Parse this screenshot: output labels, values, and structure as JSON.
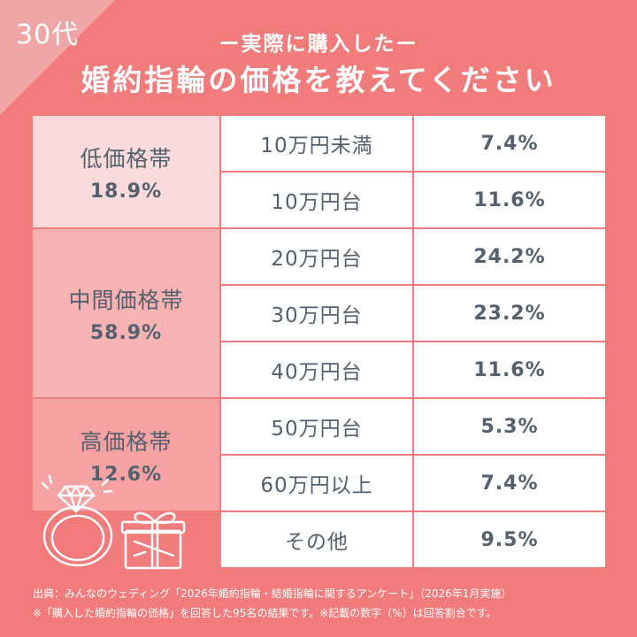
{
  "age_label": "30代",
  "subtitle": "ー実際に購入したー",
  "title": "婚約指輪の価格を教えてください",
  "colors": {
    "background": "#f27b7b",
    "corner": "#f0a6a6",
    "group_low": "#f9dbdb",
    "group_mid": "#f7b3b3",
    "group_high": "#f6a2a2",
    "text": "#55606f"
  },
  "chart_data": {
    "type": "table",
    "groups": [
      {
        "name": "低価格帯",
        "total": "18.9%",
        "rows": [
          {
            "range": "10万円未満",
            "value": "7.4%"
          },
          {
            "range": "10万円台",
            "value": "11.6%"
          }
        ]
      },
      {
        "name": "中間価格帯",
        "total": "58.9%",
        "rows": [
          {
            "range": "20万円台",
            "value": "24.2%"
          },
          {
            "range": "30万円台",
            "value": "23.2%"
          },
          {
            "range": "40万円台",
            "value": "11.6%"
          }
        ]
      },
      {
        "name": "高価格帯",
        "total": "12.6%",
        "rows": [
          {
            "range": "50万円台",
            "value": "5.3%"
          },
          {
            "range": "60万円以上",
            "value": "7.4%"
          }
        ]
      }
    ],
    "other": {
      "range": "その他",
      "value": "9.5%"
    }
  },
  "footer": {
    "source": "出典：みんなのウェディング「2026年婚約指輪・結婚指輪に関するアンケート」（2026年1月実施）",
    "note": "※「購入した婚約指輪の価格」を回答した95名の結果です。※記載の数字（%）は回答割合です。"
  },
  "decorations": [
    "ring-icon",
    "gift-box-icon"
  ]
}
